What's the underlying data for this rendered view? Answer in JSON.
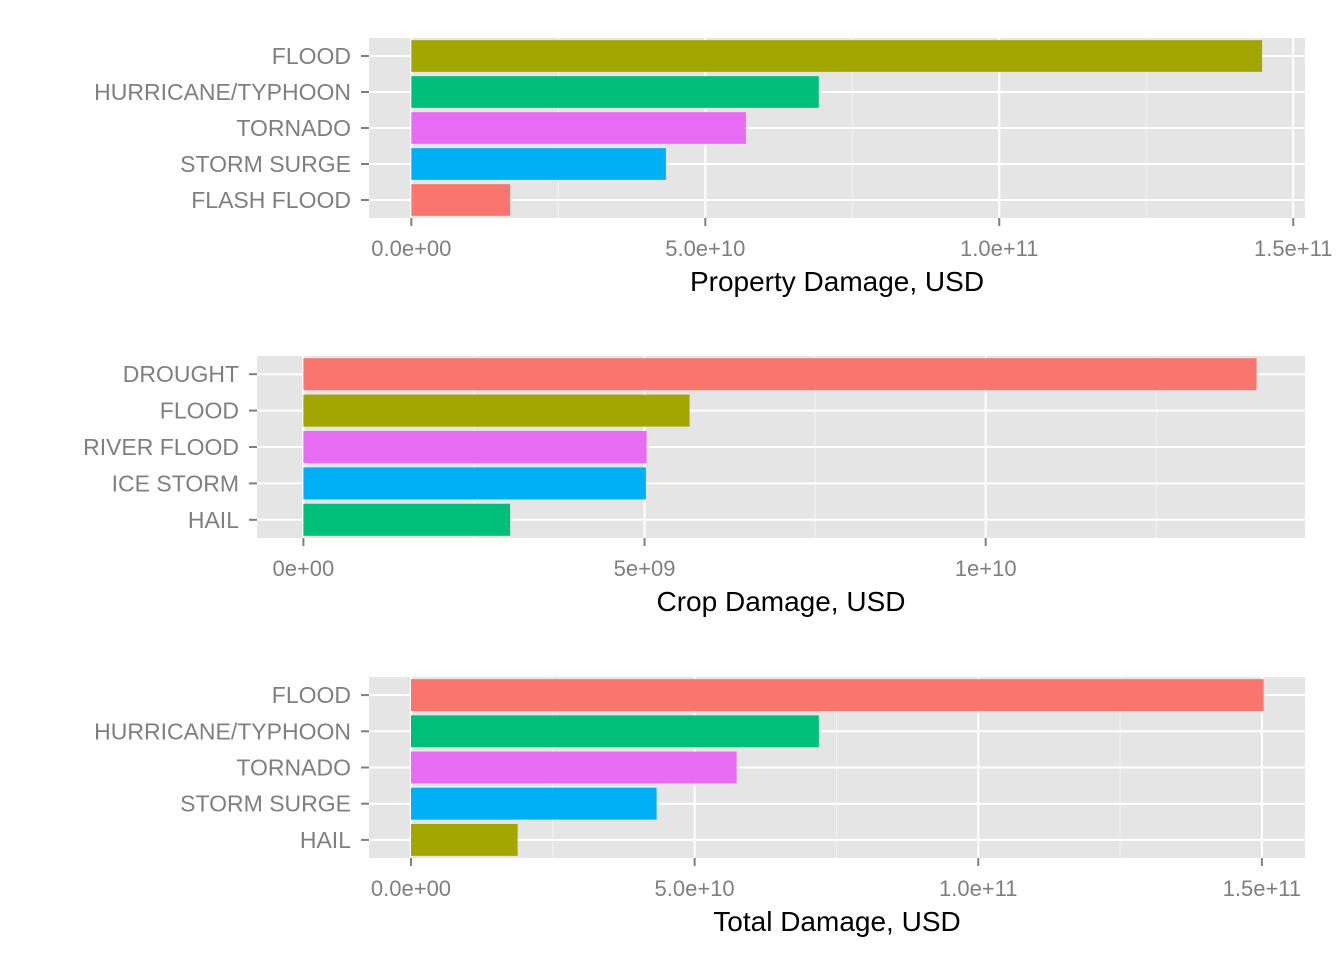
{
  "chart_data": [
    {
      "type": "bar",
      "orientation": "horizontal",
      "xlabel": "Property Damage, USD",
      "ylabel": "",
      "categories": [
        "FLOOD",
        "HURRICANE/TYPHOON",
        "TORNADO",
        "STORM SURGE",
        "FLASH FLOOD"
      ],
      "values": [
        144700000000,
        69300000000,
        56900000000,
        43300000000,
        16800000000
      ],
      "colors": [
        "#A3A500",
        "#00BF7D",
        "#E76BF3",
        "#00B0F6",
        "#F8766D"
      ],
      "xlim": [
        -7200000000,
        152000000000
      ],
      "xticks": [
        0,
        50000000000,
        100000000000,
        150000000000
      ],
      "xtick_labels": [
        "0.0e+00",
        "5.0e+10",
        "1.0e+11",
        "1.5e+11"
      ],
      "grid": true
    },
    {
      "type": "bar",
      "orientation": "horizontal",
      "xlabel": "Crop Damage, USD",
      "ylabel": "",
      "categories": [
        "DROUGHT",
        "FLOOD",
        "RIVER FLOOD",
        "ICE STORM",
        "HAIL"
      ],
      "values": [
        13970000000,
        5660000000,
        5030000000,
        5020000000,
        3030000000
      ],
      "colors": [
        "#F8766D",
        "#A3A500",
        "#E76BF3",
        "#00B0F6",
        "#00BF7D"
      ],
      "xlim": [
        -680000000,
        14680000000
      ],
      "xticks": [
        0,
        5000000000,
        10000000000
      ],
      "xtick_labels": [
        "0e+00",
        "5e+09",
        "1e+10"
      ],
      "grid": true
    },
    {
      "type": "bar",
      "orientation": "horizontal",
      "xlabel": "Total Damage, USD",
      "ylabel": "",
      "categories": [
        "FLOOD",
        "HURRICANE/TYPHOON",
        "TORNADO",
        "STORM SURGE",
        "HAIL"
      ],
      "values": [
        150300000000,
        71900000000,
        57400000000,
        43300000000,
        18800000000
      ],
      "colors": [
        "#F8766D",
        "#00BF7D",
        "#E76BF3",
        "#00B0F6",
        "#A3A500"
      ],
      "xlim": [
        -7400000000,
        157600000000
      ],
      "xticks": [
        0,
        50000000000,
        100000000000,
        150000000000
      ],
      "xtick_labels": [
        "0.0e+00",
        "5.0e+10",
        "1.0e+11",
        "1.5e+11"
      ],
      "grid": true
    }
  ]
}
